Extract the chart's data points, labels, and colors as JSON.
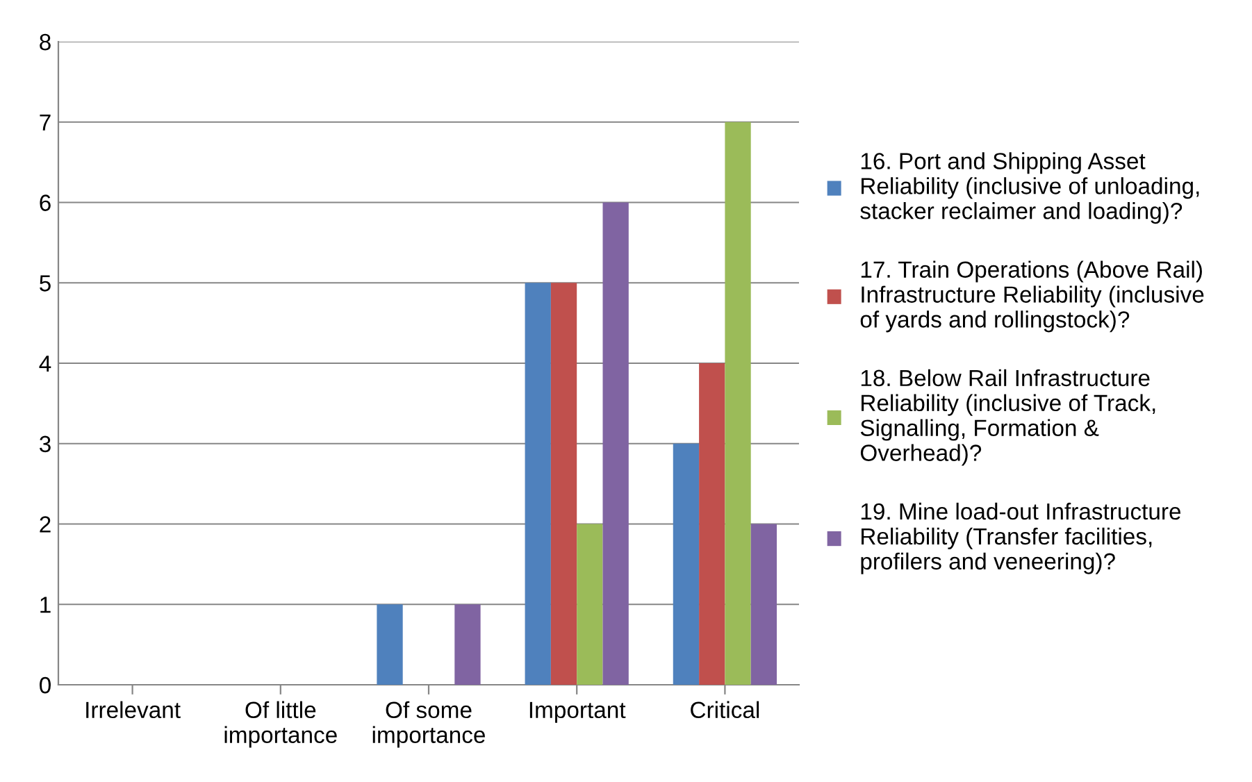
{
  "chart_data": {
    "type": "bar",
    "categories": [
      "Irrelevant",
      "Of little\nimportance",
      "Of some\nimportance",
      "Important",
      "Critical"
    ],
    "series": [
      {
        "name": "16. Port and Shipping Asset\nReliability (inclusive of unloading,\nstacker reclaimer and loading)?",
        "color": "#4f81bd",
        "values": [
          0,
          0,
          1,
          5,
          3
        ]
      },
      {
        "name": "17. Train Operations (Above Rail)\nInfrastructure Reliability (inclusive\nof yards and rollingstock)?",
        "color": "#c0504d",
        "values": [
          0,
          0,
          0,
          5,
          4
        ]
      },
      {
        "name": "18. Below Rail Infrastructure\nReliability (inclusive of Track,\nSignalling, Formation &\nOverhead)?",
        "color": "#9bbb59",
        "values": [
          0,
          0,
          0,
          2,
          7
        ]
      },
      {
        "name": "19. Mine load-out Infrastructure\nReliability (Transfer facilities,\nprofilers and veneering)?",
        "color": "#8064a2",
        "values": [
          0,
          0,
          1,
          6,
          2
        ]
      }
    ],
    "ylim": [
      0,
      8
    ],
    "yticks": [
      0,
      1,
      2,
      3,
      4,
      5,
      6,
      7,
      8
    ],
    "grid": "y",
    "legend": "right"
  }
}
